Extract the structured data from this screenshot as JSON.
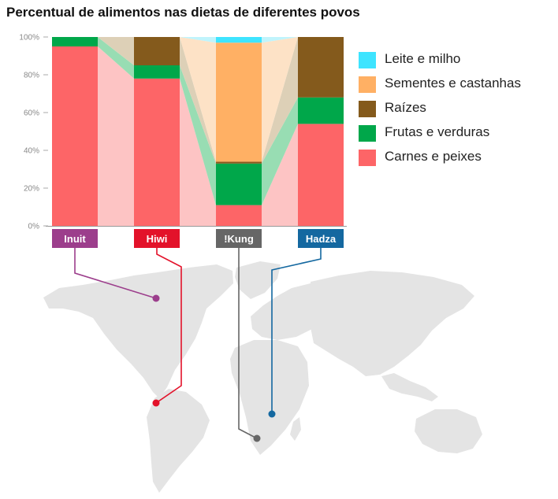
{
  "chart_data": {
    "type": "bar",
    "title": "Percentual de alimentos nas dietas de diferentes povos",
    "categories": [
      "Inuit",
      "Hiwi",
      "!Kung",
      "Hadza"
    ],
    "category_colors": [
      "#9c3e8c",
      "#e3122a",
      "#666666",
      "#1468a0"
    ],
    "series": [
      {
        "name": "Carnes e peixes",
        "color": "#fd6567",
        "connector_color": "#fdc4c4",
        "values": [
          95,
          78,
          11,
          54
        ]
      },
      {
        "name": "Frutas e verduras",
        "color": "#00a74a",
        "connector_color": "#98ddb3",
        "values": [
          5,
          7,
          22,
          14
        ]
      },
      {
        "name": "Raízes",
        "color": "#845a1c",
        "connector_color": "#ddd0b7",
        "values": [
          0,
          15,
          1,
          32
        ]
      },
      {
        "name": "Sementes e castanhas",
        "color": "#ffb064",
        "connector_color": "#fde2c6",
        "values": [
          0,
          0,
          63,
          0
        ]
      },
      {
        "name": "Leite e milho",
        "color": "#3ee4ff",
        "connector_color": "#c0f4fc",
        "values": [
          0,
          0,
          3,
          0
        ]
      }
    ],
    "legend_order": [
      "Leite e milho",
      "Sementes e castanhas",
      "Raízes",
      "Frutas e verduras",
      "Carnes e peixes"
    ],
    "y_ticks": [
      "0%",
      "20%",
      "40%",
      "60%",
      "80%",
      "100%"
    ],
    "ylim": [
      0,
      100
    ],
    "legend_position": "right",
    "grid": false
  }
}
